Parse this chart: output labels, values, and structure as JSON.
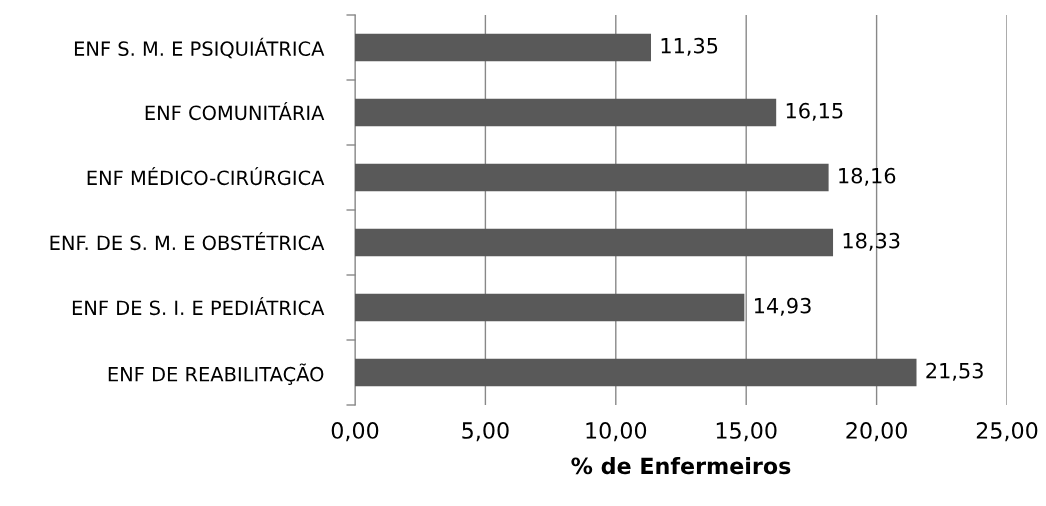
{
  "chart_data": {
    "type": "bar",
    "orientation": "horizontal",
    "xlabel": "% de Enfermeiros",
    "categories": [
      "ENF S. M. E PSIQUIÁTRICA",
      "ENF COMUNITÁRIA",
      "ENF MÉDICO-CIRÚRGICA",
      "ENF. DE S. M. E OBSTÉTRICA",
      "ENF DE S. I. E PEDIÁTRICA",
      "ENF DE REABILITAÇÃO"
    ],
    "values": [
      11.35,
      16.15,
      18.16,
      18.33,
      14.93,
      21.53
    ],
    "value_labels": [
      "11,35",
      "16,15",
      "18,16",
      "18,33",
      "14,93",
      "21,53"
    ],
    "color": "#595959",
    "xlim": [
      0,
      25
    ],
    "xticks": [
      {
        "value": 0,
        "label": "0,00"
      },
      {
        "value": 5,
        "label": "5,00"
      },
      {
        "value": 10,
        "label": "10,00"
      },
      {
        "value": 15,
        "label": "15,00"
      },
      {
        "value": 20,
        "label": "20,00"
      },
      {
        "value": 25,
        "label": "25,00"
      }
    ],
    "grid": "x"
  }
}
